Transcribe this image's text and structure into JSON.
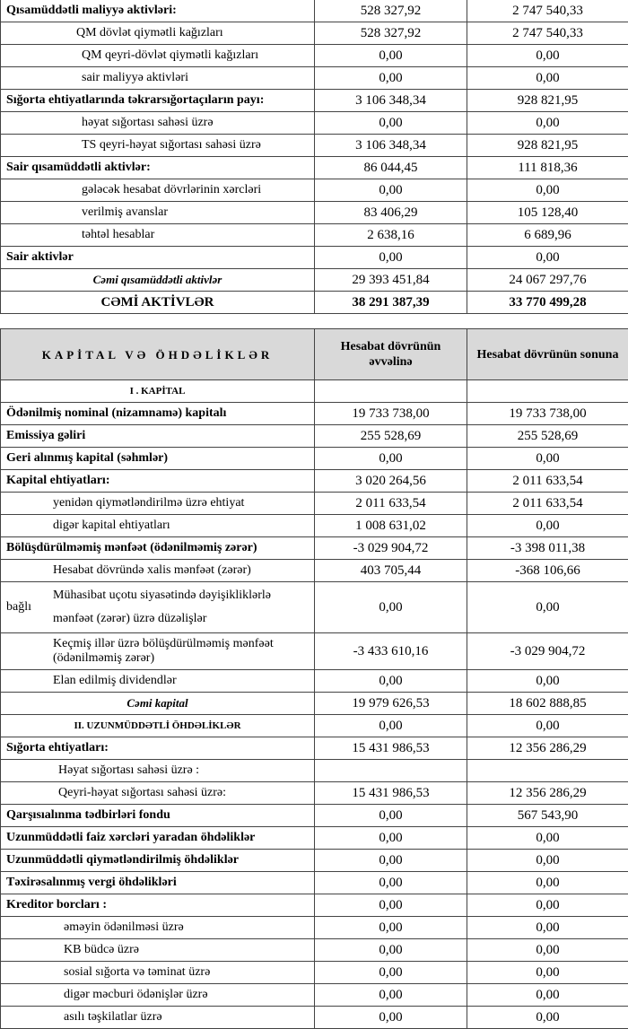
{
  "assets": {
    "rows": [
      {
        "label": "Qısamüddətli maliyyə aktivləri:",
        "v1": "528 327,92",
        "v2": "2 747 540,33",
        "type": "heading"
      },
      {
        "label": "QM dövlət qiymətli kağızları",
        "v1": "528 327,92",
        "v2": "2 747 540,33",
        "type": "sub1"
      },
      {
        "label": "QM qeyri-dövlət qiymətli kağızları",
        "v1": "0,00",
        "v2": "0,00",
        "type": "sub2"
      },
      {
        "label": "sair maliyyə aktivləri",
        "v1": "0,00",
        "v2": "0,00",
        "type": "sub2"
      },
      {
        "label": "Sığorta ehtiyatlarında təkrarsığortaçıların payı:",
        "v1": "3 106 348,34",
        "v2": "928 821,95",
        "type": "heading"
      },
      {
        "label": "həyat sığortası sahəsi üzrə",
        "v1": "0,00",
        "v2": "0,00",
        "type": "sub2"
      },
      {
        "label": "TS qeyri-həyat sığortası sahəsi üzrə",
        "v1": "3 106 348,34",
        "v2": "928 821,95",
        "type": "sub2"
      },
      {
        "label": "Sair qısamüddətli aktivlər:",
        "v1": "86 044,45",
        "v2": "111 818,36",
        "type": "heading"
      },
      {
        "label": "gələcək hesabat dövrlərinin xərcləri",
        "v1": "0,00",
        "v2": "0,00",
        "type": "sub2"
      },
      {
        "label": "verilmiş  avanslar",
        "v1": "83 406,29",
        "v2": "105 128,40",
        "type": "sub2"
      },
      {
        "label": "təhtəl hesablar",
        "v1": "2 638,16",
        "v2": "6 689,96",
        "type": "sub2"
      },
      {
        "label": "Sair aktivlər",
        "v1": "0,00",
        "v2": "0,00",
        "type": "heading"
      },
      {
        "label": "Cəmi qısamüddətli aktivlər",
        "v1": "29 393 451,84",
        "v2": "24 067 297,76",
        "type": "total"
      },
      {
        "label": "CƏMİ AKTİVLƏR",
        "v1": "38 291 387,39",
        "v2": "33 770 499,28",
        "type": "grand"
      }
    ]
  },
  "liabilities": {
    "header": {
      "title": "KAPİTAL VƏ ÖHDƏLİKLƏR",
      "col1": "Hesabat dövrünün əvvəlinə",
      "col2": "Hesabat dövrünün sonuna"
    },
    "rows": [
      {
        "label": "I . KAPİTAL",
        "v1": "",
        "v2": "",
        "type": "section"
      },
      {
        "label": "Ödənilmiş nominal (nizamnamə) kapitalı",
        "v1": "19 733 738,00",
        "v2": "19 733 738,00",
        "type": "heading"
      },
      {
        "label": "Emissiya gəliri",
        "v1": "255 528,69",
        "v2": "255 528,69",
        "type": "heading"
      },
      {
        "label": "Geri alınmış kapital (səhmlər)",
        "v1": "0,00",
        "v2": "0,00",
        "type": "heading"
      },
      {
        "label": "Kapital ehtiyatları:",
        "v1": "3 020 264,56",
        "v2": "2 011 633,54",
        "type": "heading"
      },
      {
        "label": "yenidən qiymətləndirilmə üzrə ehtiyat",
        "v1": "2 011 633,54",
        "v2": "2 011 633,54",
        "type": "sub3"
      },
      {
        "label": "digər kapital ehtiyatları",
        "v1": "1 008 631,02",
        "v2": "0,00",
        "type": "sub3"
      },
      {
        "label": "Bölüşdürülməmiş mənfəət (ödənilməmiş zərər)",
        "v1": "-3 029 904,72",
        "v2": "-3 398 011,38",
        "type": "heading"
      },
      {
        "label": "Hesabat dövründə xalis mənfəət (zərər)",
        "v1": "403 705,44",
        "v2": "-368 106,66",
        "type": "sub3"
      },
      {
        "label": "Mühasibat uçotu siyasətində dəyişikliklərlə",
        "label_side": "bağlı",
        "label2": "mənfəət (zərər) üzrə düzəlişlər",
        "v1": "0,00",
        "v2": "0,00",
        "type": "multi"
      },
      {
        "label": "Keçmiş illər üzrə bölüşdürülməmiş mənfəət (ödənilməmiş zərər)",
        "v1": "-3 433 610,16",
        "v2": "-3 029 904,72",
        "type": "multi2"
      },
      {
        "label": "Elan edilmiş dividendlər",
        "v1": "0,00",
        "v2": "0,00",
        "type": "sub3"
      },
      {
        "label": "Cəmi kapital",
        "v1": "19 979 626,53",
        "v2": "18 602 888,85",
        "type": "total"
      },
      {
        "label": "II. UZUNMÜDDƏTLİ ÖHDƏLİKLƏR",
        "v1": "0,00",
        "v2": "0,00",
        "type": "section"
      },
      {
        "label": "Sığorta ehtiyatları:",
        "v1": "15 431 986,53",
        "v2": "12 356 286,29",
        "type": "heading"
      },
      {
        "label": "Həyat sığortası sahəsi üzrə :",
        "v1": "",
        "v2": "",
        "type": "sub4"
      },
      {
        "label": "Qeyri-həyat sığortası sahəsi üzrə:",
        "v1": "15 431 986,53",
        "v2": "12 356 286,29",
        "type": "sub4"
      },
      {
        "label": "Qarşısıalınma tədbirləri fondu",
        "v1": "0,00",
        "v2": "567 543,90",
        "type": "heading"
      },
      {
        "label": "Uzunmüddətli faiz xərcləri yaradan öhdəliklər",
        "v1": "0,00",
        "v2": "0,00",
        "type": "heading"
      },
      {
        "label": "Uzunmüddətli qiymətləndirilmiş öhdəliklər",
        "v1": "0,00",
        "v2": "0,00",
        "type": "heading"
      },
      {
        "label": "Təxirəsalınmış vergi öhdəlikləri",
        "v1": "0,00",
        "v2": "0,00",
        "type": "heading"
      },
      {
        "label": "Kreditor borcları :",
        "v1": "0,00",
        "v2": "0,00",
        "type": "heading"
      },
      {
        "label": "əməyin ödənilməsi üzrə",
        "v1": "0,00",
        "v2": "0,00",
        "type": "sub5"
      },
      {
        "label": "KB büdcə üzrə",
        "v1": "0,00",
        "v2": "0,00",
        "type": "sub5"
      },
      {
        "label": "sosial sığorta və təminat üzrə",
        "v1": "0,00",
        "v2": "0,00",
        "type": "sub5"
      },
      {
        "label": "digər məcburi ödənişlər üzrə",
        "v1": "0,00",
        "v2": "0,00",
        "type": "sub5"
      },
      {
        "label": "asılı təşkilatlar üzrə",
        "v1": "0,00",
        "v2": "0,00",
        "type": "sub5"
      }
    ]
  }
}
